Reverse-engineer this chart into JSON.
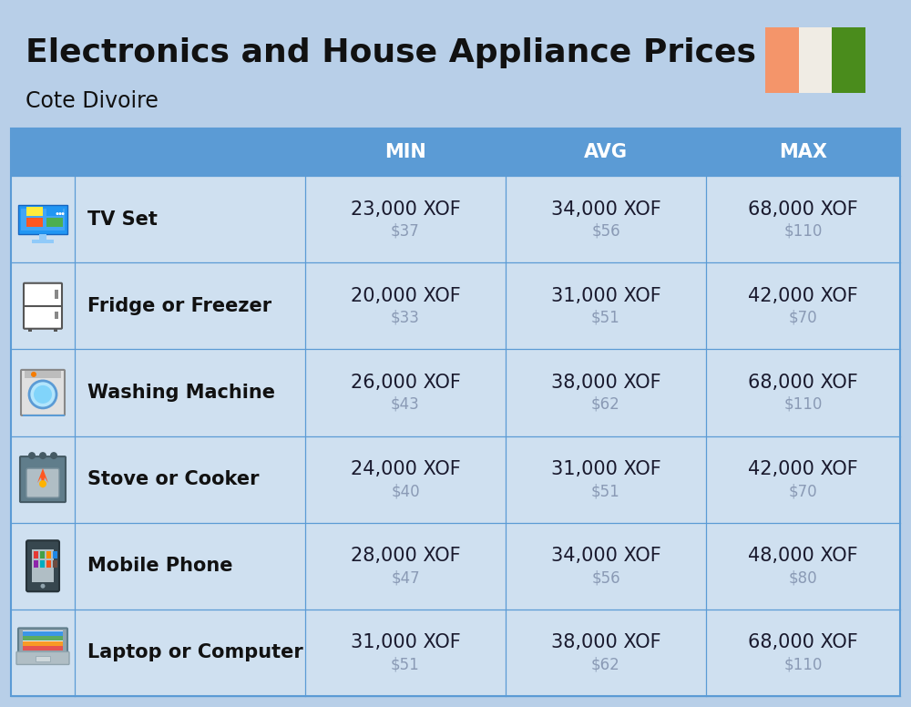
{
  "title": "Electronics and House Appliance Prices",
  "subtitle": "Cote Divoire",
  "bg_color": "#b8cfe8",
  "header_bg": "#5b9bd5",
  "header_text_color": "#ffffff",
  "row_bg": "#cfe0f0",
  "divider_color": "#5b9bd5",
  "item_name_color": "#111111",
  "price_xof_color": "#1a1a2e",
  "price_usd_color": "#8a9ab5",
  "headers": [
    "MIN",
    "AVG",
    "MAX"
  ],
  "rows": [
    {
      "name": "TV Set",
      "min_xof": "23,000 XOF",
      "min_usd": "$37",
      "avg_xof": "34,000 XOF",
      "avg_usd": "$56",
      "max_xof": "68,000 XOF",
      "max_usd": "$110"
    },
    {
      "name": "Fridge or Freezer",
      "min_xof": "20,000 XOF",
      "min_usd": "$33",
      "avg_xof": "31,000 XOF",
      "avg_usd": "$51",
      "max_xof": "42,000 XOF",
      "max_usd": "$70"
    },
    {
      "name": "Washing Machine",
      "min_xof": "26,000 XOF",
      "min_usd": "$43",
      "avg_xof": "38,000 XOF",
      "avg_usd": "$62",
      "max_xof": "68,000 XOF",
      "max_usd": "$110"
    },
    {
      "name": "Stove or Cooker",
      "min_xof": "24,000 XOF",
      "min_usd": "$40",
      "avg_xof": "31,000 XOF",
      "avg_usd": "$51",
      "max_xof": "42,000 XOF",
      "max_usd": "$70"
    },
    {
      "name": "Mobile Phone",
      "min_xof": "28,000 XOF",
      "min_usd": "$47",
      "avg_xof": "34,000 XOF",
      "avg_usd": "$56",
      "max_xof": "48,000 XOF",
      "max_usd": "$80"
    },
    {
      "name": "Laptop or Computer",
      "min_xof": "31,000 XOF",
      "min_usd": "$51",
      "avg_xof": "38,000 XOF",
      "avg_usd": "$62",
      "max_xof": "68,000 XOF",
      "max_usd": "$110"
    }
  ],
  "flag_colors": [
    "#f4956a",
    "#f0ece4",
    "#4a8c1c"
  ],
  "title_fontsize": 26,
  "subtitle_fontsize": 17,
  "header_fontsize": 15,
  "item_name_fontsize": 15,
  "price_xof_fontsize": 15,
  "price_usd_fontsize": 12
}
